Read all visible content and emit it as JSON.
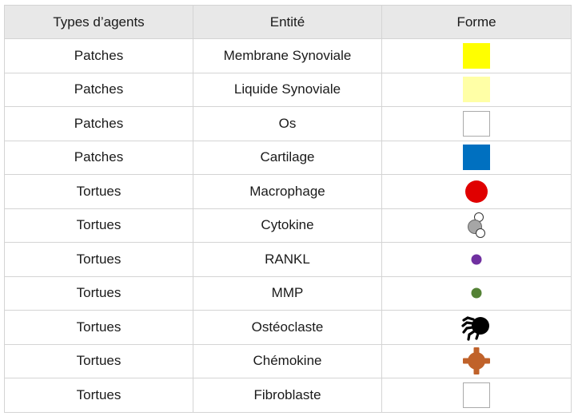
{
  "table": {
    "headers": [
      "Types d’agents",
      "Entité",
      "Forme"
    ],
    "rows": [
      {
        "type": "Patches",
        "entity": "Membrane Synoviale",
        "shape": "yellow-square",
        "color": "#ffff00"
      },
      {
        "type": "Patches",
        "entity": "Liquide Synoviale",
        "shape": "light-yellow-square",
        "color": "#ffffa6"
      },
      {
        "type": "Patches",
        "entity": "Os",
        "shape": "white-square",
        "color": "#ffffff"
      },
      {
        "type": "Patches",
        "entity": "Cartilage",
        "shape": "blue-square",
        "color": "#0070c0"
      },
      {
        "type": "Tortues",
        "entity": "Macrophage",
        "shape": "red-circle-icon",
        "color": "#e00000"
      },
      {
        "type": "Tortues",
        "entity": "Cytokine",
        "shape": "cytokine-molecule-icon",
        "color": "#a6a6a6"
      },
      {
        "type": "Tortues",
        "entity": "RANKL",
        "shape": "purple-dot-icon",
        "color": "#7030a0"
      },
      {
        "type": "Tortues",
        "entity": "MMP",
        "shape": "green-dot-icon",
        "color": "#548235"
      },
      {
        "type": "Tortues",
        "entity": "Ostéoclaste",
        "shape": "osteoclast-icon",
        "color": "#000000"
      },
      {
        "type": "Tortues",
        "entity": "Chémokine",
        "shape": "chemokine-gear-icon",
        "color": "#c0622a"
      },
      {
        "type": "Tortues",
        "entity": "Fibroblaste",
        "shape": "white-square",
        "color": "#ffffff"
      }
    ]
  }
}
